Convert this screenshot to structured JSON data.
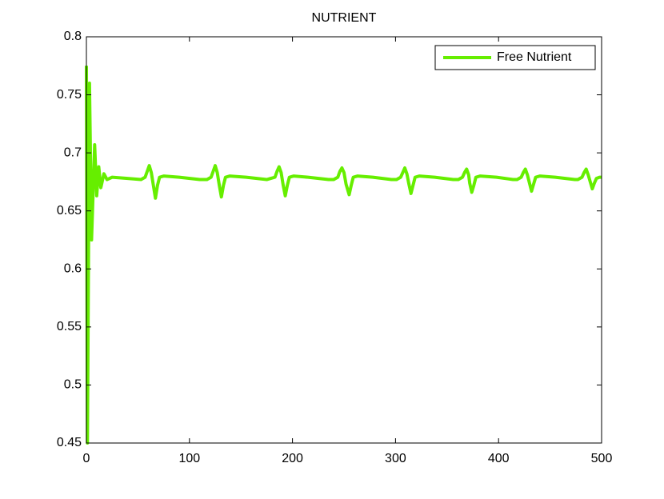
{
  "chart_data": {
    "type": "line",
    "title": "NUTRIENT",
    "x": [
      0,
      1,
      3,
      5,
      8,
      10,
      12,
      14,
      17,
      20,
      25,
      40,
      53,
      57,
      59,
      61,
      63,
      65,
      67,
      69,
      71,
      75,
      90,
      110,
      117,
      121,
      123,
      125,
      127,
      129,
      131,
      133,
      135,
      139,
      155,
      175,
      179,
      183,
      185,
      187,
      189,
      191,
      193,
      195,
      197,
      201,
      215,
      235,
      240,
      244,
      246,
      248,
      250,
      252,
      255,
      257,
      259,
      263,
      278,
      296,
      301,
      305,
      307,
      309,
      311,
      313,
      315,
      317,
      319,
      323,
      338,
      356,
      361,
      365,
      367,
      369,
      371,
      372,
      374,
      376,
      378,
      382,
      398,
      414,
      418,
      422,
      424,
      426,
      428,
      430,
      432,
      434,
      436,
      440,
      455,
      474,
      477,
      481,
      483,
      485,
      487,
      489,
      491,
      493,
      495,
      498,
      500
    ],
    "series": [
      {
        "name": "Free Nutrient",
        "color": "#66ee00",
        "values": [
          0.775,
          0.45,
          0.76,
          0.625,
          0.707,
          0.663,
          0.688,
          0.67,
          0.682,
          0.677,
          0.679,
          0.678,
          0.677,
          0.679,
          0.684,
          0.689,
          0.683,
          0.672,
          0.661,
          0.672,
          0.679,
          0.68,
          0.679,
          0.677,
          0.677,
          0.679,
          0.684,
          0.689,
          0.683,
          0.672,
          0.662,
          0.672,
          0.679,
          0.68,
          0.679,
          0.677,
          0.678,
          0.679,
          0.684,
          0.688,
          0.683,
          0.672,
          0.663,
          0.672,
          0.679,
          0.68,
          0.679,
          0.677,
          0.677,
          0.679,
          0.684,
          0.687,
          0.683,
          0.673,
          0.664,
          0.672,
          0.679,
          0.68,
          0.679,
          0.677,
          0.677,
          0.679,
          0.683,
          0.687,
          0.682,
          0.673,
          0.665,
          0.672,
          0.679,
          0.68,
          0.679,
          0.677,
          0.677,
          0.679,
          0.683,
          0.686,
          0.681,
          0.674,
          0.666,
          0.672,
          0.679,
          0.68,
          0.679,
          0.677,
          0.677,
          0.679,
          0.683,
          0.686,
          0.681,
          0.674,
          0.667,
          0.673,
          0.679,
          0.68,
          0.679,
          0.677,
          0.677,
          0.679,
          0.683,
          0.686,
          0.681,
          0.675,
          0.669,
          0.674,
          0.678,
          0.679,
          0.679
        ]
      }
    ],
    "xlim": [
      0,
      500
    ],
    "xticks": [
      0,
      100,
      200,
      300,
      400,
      500
    ],
    "ylim": [
      0.45,
      0.8
    ],
    "yticks": [
      0.45,
      0.5,
      0.55,
      0.6,
      0.65,
      0.7,
      0.75,
      0.8
    ],
    "legend": "upper right",
    "grid": false
  }
}
